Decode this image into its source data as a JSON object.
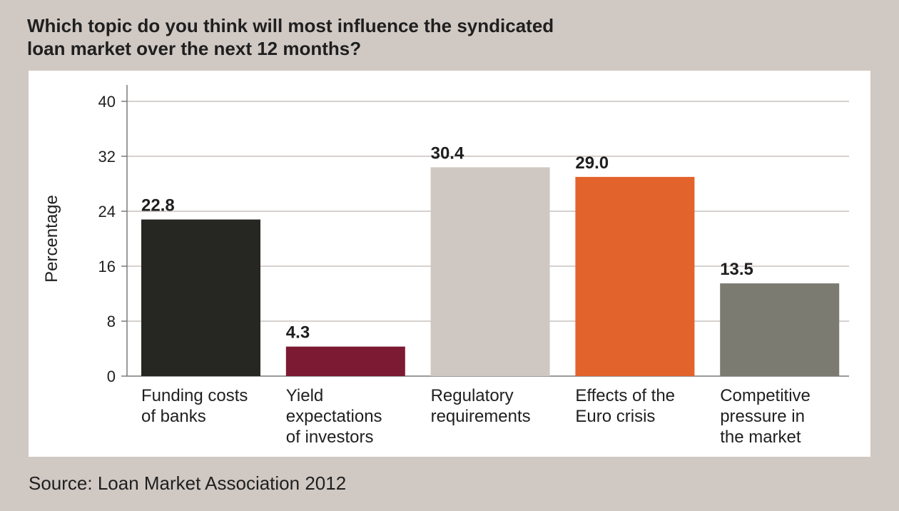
{
  "title_lines": [
    "Which topic do you think will most influence the syndicated",
    "loan market over the next 12 months?"
  ],
  "source": "Source: Loan Market Association 2012",
  "chart_data": {
    "type": "bar",
    "title": "Which topic do you think will most influence the syndicated loan market over the next 12 months?",
    "ylabel": "Percentage",
    "xlabel": "",
    "ylim": [
      0,
      40
    ],
    "yticks": [
      0,
      8,
      16,
      24,
      32,
      40
    ],
    "grid": true,
    "categories": [
      "Funding costs of banks",
      "Yield expectations of investors",
      "Regulatory requirements",
      "Effects of the Euro crisis",
      "Competitive pressure in the market"
    ],
    "category_lines": [
      [
        "Funding costs",
        "of banks"
      ],
      [
        "Yield",
        "expectations",
        "of investors"
      ],
      [
        "Regulatory",
        "requirements"
      ],
      [
        "Effects of the",
        "Euro crisis"
      ],
      [
        "Competitive",
        "pressure in",
        "the market"
      ]
    ],
    "values": [
      22.8,
      4.3,
      30.4,
      29.0,
      13.5
    ],
    "value_labels": [
      "22.8",
      "4.3",
      "30.4",
      "29.0",
      "13.5"
    ],
    "colors": [
      "#262622",
      "#7d1a33",
      "#cfc8c2",
      "#e2632b",
      "#7c7b71"
    ],
    "grid_color": "#c8c2bd",
    "axis_color": "#7a7a7a"
  }
}
